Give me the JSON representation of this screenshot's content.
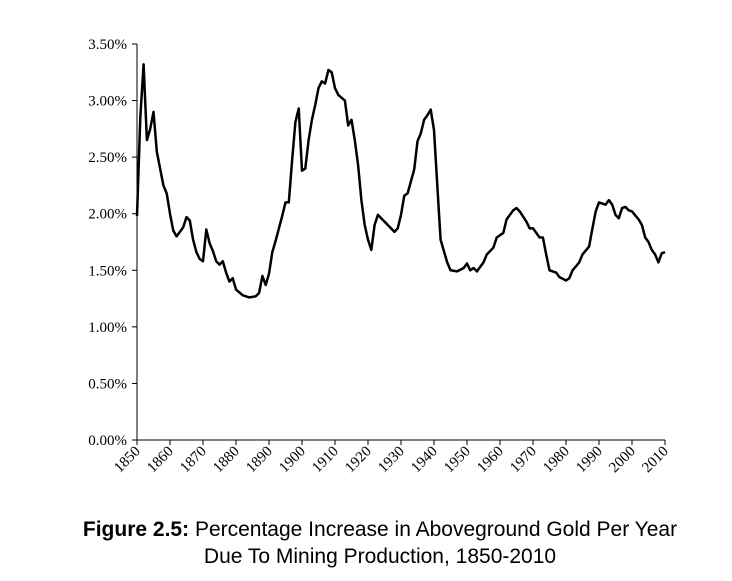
{
  "chart_data": {
    "type": "line",
    "figure_label": "Figure 2.5:",
    "title_lines": [
      "Percentage Increase in Aboveground Gold Per Year",
      "Due To Mining Production, 1850-2010"
    ],
    "x": [
      1850,
      1851,
      1852,
      1853,
      1854,
      1855,
      1856,
      1858,
      1859,
      1860,
      1861,
      1862,
      1864,
      1865,
      1866,
      1867,
      1868,
      1869,
      1870,
      1871,
      1872,
      1873,
      1874,
      1875,
      1876,
      1877,
      1878,
      1879,
      1880,
      1882,
      1884,
      1886,
      1887,
      1888,
      1889,
      1890,
      1891,
      1892,
      1894,
      1895,
      1896,
      1897,
      1898,
      1899,
      1900,
      1901,
      1902,
      1903,
      1904,
      1905,
      1906,
      1907,
      1908,
      1909,
      1910,
      1911,
      1913,
      1914,
      1915,
      1916,
      1917,
      1918,
      1919,
      1920,
      1921,
      1922,
      1923,
      1924,
      1925,
      1927,
      1928,
      1929,
      1930,
      1931,
      1932,
      1934,
      1935,
      1936,
      1937,
      1938,
      1939,
      1940,
      1941,
      1942,
      1944,
      1945,
      1947,
      1949,
      1950,
      1951,
      1952,
      1953,
      1955,
      1956,
      1958,
      1959,
      1961,
      1962,
      1964,
      1965,
      1966,
      1968,
      1969,
      1970,
      1972,
      1973,
      1974,
      1975,
      1977,
      1978,
      1980,
      1981,
      1982,
      1984,
      1985,
      1987,
      1988,
      1989,
      1990,
      1992,
      1993,
      1994,
      1995,
      1996,
      1997,
      1998,
      1999,
      2000,
      2002,
      2003,
      2004,
      2005,
      2006,
      2007,
      2008,
      2009,
      2010
    ],
    "series": [
      {
        "color": "#000000",
        "values": [
          1.98,
          2.85,
          3.32,
          2.65,
          2.75,
          2.9,
          2.55,
          2.25,
          2.18,
          2.0,
          1.85,
          1.8,
          1.88,
          1.97,
          1.94,
          1.77,
          1.66,
          1.6,
          1.58,
          1.86,
          1.74,
          1.67,
          1.58,
          1.55,
          1.58,
          1.48,
          1.4,
          1.43,
          1.33,
          1.28,
          1.26,
          1.27,
          1.3,
          1.45,
          1.37,
          1.47,
          1.66,
          1.76,
          1.98,
          2.1,
          2.1,
          2.47,
          2.81,
          2.93,
          2.38,
          2.4,
          2.65,
          2.83,
          2.96,
          3.11,
          3.17,
          3.15,
          3.27,
          3.25,
          3.11,
          3.05,
          3.0,
          2.78,
          2.83,
          2.65,
          2.43,
          2.12,
          1.9,
          1.77,
          1.68,
          1.9,
          1.99,
          1.96,
          1.93,
          1.87,
          1.84,
          1.87,
          1.99,
          2.16,
          2.18,
          2.39,
          2.64,
          2.71,
          2.83,
          2.87,
          2.92,
          2.74,
          2.25,
          1.77,
          1.57,
          1.5,
          1.49,
          1.52,
          1.56,
          1.5,
          1.52,
          1.49,
          1.57,
          1.64,
          1.7,
          1.79,
          1.83,
          1.95,
          2.03,
          2.05,
          2.02,
          1.93,
          1.87,
          1.87,
          1.79,
          1.79,
          1.64,
          1.5,
          1.48,
          1.44,
          1.41,
          1.43,
          1.5,
          1.57,
          1.64,
          1.71,
          1.87,
          2.02,
          2.1,
          2.08,
          2.12,
          2.08,
          1.99,
          1.96,
          2.05,
          2.06,
          2.03,
          2.02,
          1.95,
          1.9,
          1.79,
          1.75,
          1.68,
          1.64,
          1.57,
          1.65,
          1.66
        ]
      }
    ],
    "xlim": [
      1850,
      2010
    ],
    "xticks": [
      1850,
      1860,
      1870,
      1880,
      1890,
      1900,
      1910,
      1920,
      1930,
      1940,
      1950,
      1960,
      1970,
      1980,
      1990,
      2000,
      2010
    ],
    "ylim": [
      0,
      3.5
    ],
    "yticks": [
      {
        "value": 0,
        "label": "0.00%"
      },
      {
        "value": 0.5,
        "label": "0.50%"
      },
      {
        "value": 1,
        "label": "1.00%"
      },
      {
        "value": 1.5,
        "label": "1.50%"
      },
      {
        "value": 2,
        "label": "2.00%"
      },
      {
        "value": 2.5,
        "label": "2.50%"
      },
      {
        "value": 3,
        "label": "3.00%"
      },
      {
        "value": 3.5,
        "label": "3.50%"
      }
    ],
    "grid": false
  }
}
